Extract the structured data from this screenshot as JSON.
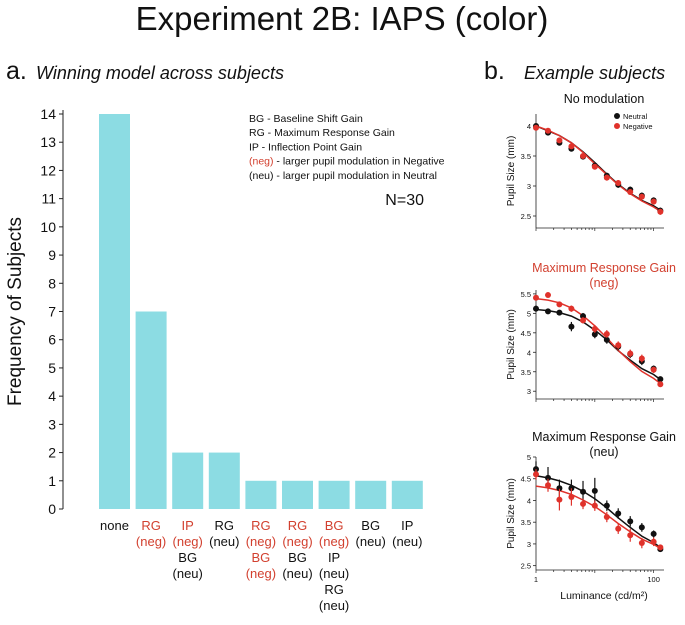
{
  "figure_title": "Experiment 2B: IAPS (color)",
  "panel_a": {
    "letter": "a.",
    "title": "Winning model across subjects"
  },
  "panel_b": {
    "letter": "b.",
    "title": "Example subjects"
  },
  "colors": {
    "bar": "#8CDCE3",
    "red": "#E0322B",
    "black": "#111111",
    "label_red": "#D2402F"
  },
  "chart_data": [
    {
      "type": "bar",
      "title": "Winning model across subjects",
      "ylabel": "Frequency of Subjects",
      "ylim": [
        0,
        14
      ],
      "yticks": [
        "0",
        "1",
        "2",
        "3",
        "4",
        "5",
        "6",
        "7",
        "8",
        "9",
        "10",
        "11",
        "12",
        "13",
        "14"
      ],
      "values": [
        14,
        7,
        2,
        2,
        1,
        1,
        1,
        1,
        1
      ],
      "category_labels": [
        [
          {
            "text": "none",
            "color": "black"
          }
        ],
        [
          {
            "text": "RG",
            "color": "red"
          },
          {
            "text": "(neg)",
            "color": "red"
          }
        ],
        [
          {
            "text": "IP",
            "color": "red"
          },
          {
            "text": "(neg)",
            "color": "red"
          },
          {
            "text": "BG",
            "color": "black"
          },
          {
            "text": "(neu)",
            "color": "black"
          }
        ],
        [
          {
            "text": "RG",
            "color": "black"
          },
          {
            "text": "(neu)",
            "color": "black"
          }
        ],
        [
          {
            "text": "RG",
            "color": "red"
          },
          {
            "text": "(neg)",
            "color": "red"
          },
          {
            "text": "BG",
            "color": "red"
          },
          {
            "text": "(neg)",
            "color": "red"
          }
        ],
        [
          {
            "text": "RG",
            "color": "red"
          },
          {
            "text": "(neg)",
            "color": "red"
          },
          {
            "text": "BG",
            "color": "black"
          },
          {
            "text": "(neu)",
            "color": "black"
          }
        ],
        [
          {
            "text": "BG",
            "color": "red"
          },
          {
            "text": "(neg)",
            "color": "red"
          },
          {
            "text": "IP",
            "color": "black"
          },
          {
            "text": "(neu)",
            "color": "black"
          },
          {
            "text": "RG",
            "color": "black"
          },
          {
            "text": "(neu)",
            "color": "black"
          }
        ],
        [
          {
            "text": "BG",
            "color": "black"
          },
          {
            "text": "(neu)",
            "color": "black"
          }
        ],
        [
          {
            "text": "IP",
            "color": "black"
          },
          {
            "text": "(neu)",
            "color": "black"
          }
        ]
      ],
      "legend": [
        {
          "text": "BG - Baseline Shift Gain",
          "color": "black"
        },
        {
          "text": "RG - Maximum Response Gain",
          "color": "black"
        },
        {
          "text": "IP - Inflection Point Gain",
          "color": "black"
        },
        {
          "prefix": "(neg)",
          "text": " - larger pupil modulation in Negative",
          "color": "red"
        },
        {
          "prefix": "(neu)",
          "text": " - larger pupil modulation in Neutral",
          "color": "black"
        }
      ],
      "n_label": "N=30"
    },
    {
      "type": "scatter",
      "title": "No modulation",
      "title_color": "black",
      "xlabel": "",
      "ylabel": "Pupil Size (mm)",
      "xscale": "log",
      "xlim": [
        1,
        150
      ],
      "ylim": [
        2.3,
        4.2
      ],
      "yticks": [
        2.5,
        3,
        3.5,
        4
      ],
      "ytick_labels": [
        "2.5",
        "3",
        "3.5",
        "4"
      ],
      "legend": [
        "Neutral",
        "Negative"
      ],
      "series": [
        {
          "name": "Neutral",
          "color": "black",
          "x": [
            1,
            1.6,
            2.5,
            4,
            6.3,
            10,
            16,
            25,
            40,
            63,
            100,
            130
          ],
          "y": [
            4.0,
            3.89,
            3.72,
            3.62,
            3.49,
            3.34,
            3.17,
            3.02,
            2.94,
            2.84,
            2.76,
            2.59
          ],
          "err": [
            0.04,
            0.04,
            0.04,
            0.04,
            0.04,
            0.04,
            0.05,
            0.05,
            0.05,
            0.05,
            0.05,
            0.05
          ],
          "fit": [
            4.0,
            3.92,
            3.84,
            3.72,
            3.57,
            3.39,
            3.2,
            3.03,
            2.88,
            2.76,
            2.67,
            2.6
          ]
        },
        {
          "name": "Negative",
          "color": "red",
          "x": [
            1,
            1.6,
            2.5,
            4,
            6.3,
            10,
            16,
            25,
            40,
            63,
            100,
            130
          ],
          "y": [
            3.97,
            3.92,
            3.76,
            3.66,
            3.5,
            3.32,
            3.14,
            3.05,
            2.9,
            2.82,
            2.74,
            2.57
          ],
          "err": [
            0.04,
            0.04,
            0.04,
            0.04,
            0.04,
            0.04,
            0.05,
            0.05,
            0.05,
            0.05,
            0.05,
            0.05
          ],
          "fit": [
            4.0,
            3.93,
            3.84,
            3.72,
            3.56,
            3.37,
            3.19,
            3.02,
            2.87,
            2.75,
            2.65,
            2.58
          ]
        }
      ]
    },
    {
      "type": "scatter",
      "title": "Maximum Response Gain",
      "subtitle": "(neg)",
      "title_color": "red",
      "xlabel": "",
      "ylabel": "Pupil Size (mm)",
      "xscale": "log",
      "xlim": [
        1,
        150
      ],
      "ylim": [
        2.8,
        5.6
      ],
      "yticks": [
        3,
        3.5,
        4,
        4.5,
        5,
        5.5
      ],
      "ytick_labels": [
        "3",
        "3.5",
        "4",
        "4.5",
        "5",
        "5.5"
      ],
      "series": [
        {
          "name": "Neutral",
          "color": "black",
          "x": [
            1,
            1.6,
            2.5,
            4,
            6.3,
            10,
            16,
            25,
            40,
            63,
            100,
            130
          ],
          "y": [
            5.12,
            5.05,
            5.02,
            4.66,
            4.93,
            4.46,
            4.32,
            4.15,
            3.95,
            3.77,
            3.58,
            3.31
          ],
          "err": [
            0.08,
            0.06,
            0.06,
            0.12,
            0.08,
            0.1,
            0.1,
            0.1,
            0.1,
            0.1,
            0.08,
            0.06
          ],
          "fit": [
            5.1,
            5.07,
            5.02,
            4.93,
            4.78,
            4.57,
            4.32,
            4.04,
            3.8,
            3.58,
            3.43,
            3.3
          ]
        },
        {
          "name": "Negative",
          "color": "red",
          "x": [
            1,
            1.6,
            2.5,
            4,
            6.3,
            10,
            16,
            25,
            40,
            63,
            100,
            130
          ],
          "y": [
            5.4,
            5.47,
            5.23,
            5.12,
            4.82,
            4.6,
            4.47,
            4.18,
            3.97,
            3.84,
            3.55,
            3.18
          ],
          "err": [
            0.06,
            0.06,
            0.06,
            0.08,
            0.08,
            0.1,
            0.1,
            0.1,
            0.1,
            0.1,
            0.08,
            0.06
          ],
          "fit": [
            5.38,
            5.34,
            5.27,
            5.14,
            4.94,
            4.68,
            4.37,
            4.05,
            3.76,
            3.51,
            3.33,
            3.2
          ]
        }
      ]
    },
    {
      "type": "scatter",
      "title": "Maximum Response Gain",
      "subtitle": "(neu)",
      "title_color": "black",
      "xlabel": "Luminance (cd/m²)",
      "ylabel": "Pupil Size (mm)",
      "xscale": "log",
      "xlim": [
        1,
        150
      ],
      "xticks": [
        1,
        100
      ],
      "xtick_labels": [
        "1",
        "100"
      ],
      "ylim": [
        2.4,
        5.0
      ],
      "yticks": [
        2.5,
        3,
        3.5,
        4,
        4.5,
        5
      ],
      "ytick_labels": [
        "2.5",
        "3",
        "3.5",
        "4",
        "4.5",
        "5"
      ],
      "series": [
        {
          "name": "Neutral",
          "color": "black",
          "x": [
            1,
            1.6,
            2.5,
            4,
            6.3,
            10,
            16,
            25,
            40,
            63,
            100,
            130
          ],
          "y": [
            4.72,
            4.52,
            4.28,
            4.28,
            4.2,
            4.22,
            3.88,
            3.7,
            3.52,
            3.38,
            3.23,
            2.88
          ],
          "err": [
            0.18,
            0.25,
            0.2,
            0.2,
            0.25,
            0.3,
            0.12,
            0.12,
            0.12,
            0.1,
            0.08,
            0.06
          ],
          "fit": [
            4.57,
            4.52,
            4.45,
            4.35,
            4.21,
            4.04,
            3.83,
            3.6,
            3.38,
            3.18,
            3.03,
            2.92
          ]
        },
        {
          "name": "Negative",
          "color": "red",
          "x": [
            1,
            1.6,
            2.5,
            4,
            6.3,
            10,
            16,
            25,
            40,
            63,
            100,
            130
          ],
          "y": [
            4.6,
            4.35,
            4.02,
            4.08,
            3.92,
            3.88,
            3.62,
            3.35,
            3.2,
            3.02,
            3.05,
            2.92
          ],
          "err": [
            0.12,
            0.15,
            0.25,
            0.2,
            0.12,
            0.12,
            0.12,
            0.12,
            0.15,
            0.12,
            0.1,
            0.06
          ],
          "fit": [
            4.33,
            4.29,
            4.23,
            4.14,
            4.01,
            3.86,
            3.67,
            3.47,
            3.28,
            3.11,
            2.99,
            2.9
          ]
        }
      ]
    }
  ]
}
